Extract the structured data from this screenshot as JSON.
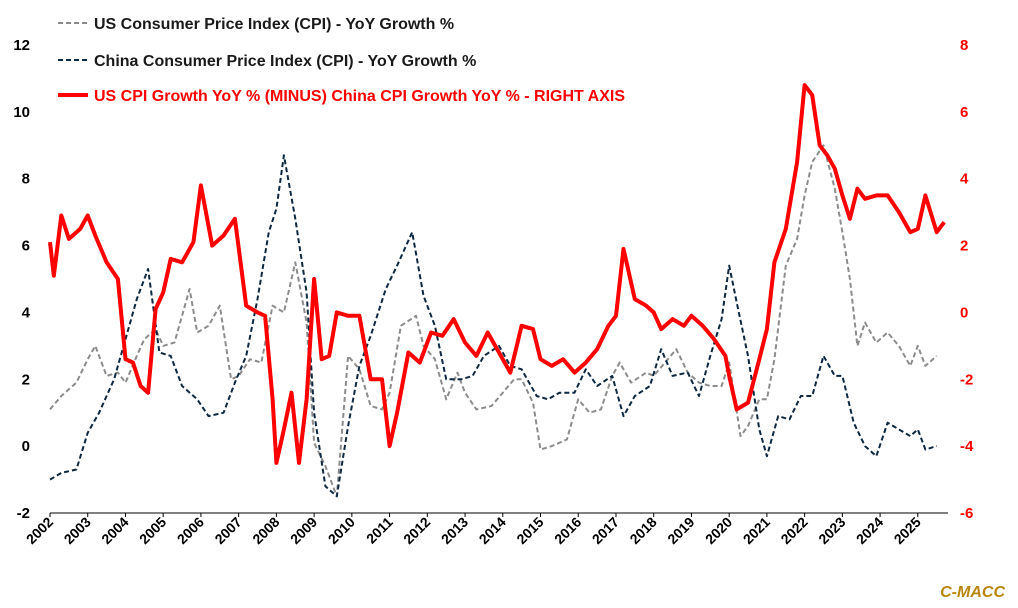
{
  "chart_data": {
    "type": "line",
    "title": "",
    "xlabel": "",
    "ylabel": "",
    "x_range": [
      2002,
      2025.8
    ],
    "x_ticks": [
      "2002",
      "2003",
      "2004",
      "2005",
      "2006",
      "2007",
      "2008",
      "2009",
      "2010",
      "2011",
      "2012",
      "2013",
      "2014",
      "2015",
      "2016",
      "2017",
      "2018",
      "2019",
      "2020",
      "2021",
      "2022",
      "2023",
      "2024",
      "2025"
    ],
    "ylim_left": [
      -2,
      12
    ],
    "yticks_left": [
      "-2",
      "0",
      "2",
      "4",
      "6",
      "8",
      "10",
      "12"
    ],
    "ylim_right": [
      -6,
      8
    ],
    "yticks_right": [
      "-6",
      "-4",
      "-2",
      "0",
      "2",
      "4",
      "6",
      "8"
    ],
    "grid": false,
    "legend_position": "top-left",
    "series": [
      {
        "name": "US Consumer Price Index (CPI) - YoY Growth %",
        "axis": "left",
        "color": "#8c8c8c",
        "style": "dashed",
        "x": [
          2002.0,
          2002.3,
          2002.7,
          2003.0,
          2003.2,
          2003.5,
          2003.8,
          2004.0,
          2004.3,
          2004.5,
          2004.8,
          2005.0,
          2005.3,
          2005.7,
          2005.9,
          2006.2,
          2006.5,
          2006.8,
          2007.0,
          2007.3,
          2007.6,
          2007.9,
          2008.2,
          2008.5,
          2008.8,
          2009.0,
          2009.3,
          2009.6,
          2009.9,
          2010.2,
          2010.5,
          2010.8,
          2011.0,
          2011.3,
          2011.7,
          2011.9,
          2012.2,
          2012.5,
          2012.8,
          2013.0,
          2013.3,
          2013.7,
          2014.0,
          2014.3,
          2014.5,
          2014.8,
          2015.0,
          2015.3,
          2015.7,
          2016.0,
          2016.3,
          2016.6,
          2016.9,
          2017.1,
          2017.4,
          2017.8,
          2018.0,
          2018.3,
          2018.6,
          2018.9,
          2019.2,
          2019.5,
          2019.8,
          2020.0,
          2020.3,
          2020.5,
          2020.8,
          2021.0,
          2021.2,
          2021.5,
          2021.8,
          2022.0,
          2022.2,
          2022.5,
          2022.8,
          2023.0,
          2023.2,
          2023.4,
          2023.6,
          2023.9,
          2024.2,
          2024.5,
          2024.8,
          2025.0,
          2025.2,
          2025.5
        ],
        "values": [
          1.1,
          1.5,
          1.9,
          2.6,
          3.0,
          2.1,
          2.2,
          1.9,
          2.7,
          3.2,
          3.5,
          3.0,
          3.1,
          4.7,
          3.4,
          3.6,
          4.2,
          2.0,
          2.1,
          2.6,
          2.5,
          4.2,
          4.0,
          5.5,
          3.7,
          0.1,
          -0.6,
          -1.5,
          2.7,
          2.3,
          1.2,
          1.1,
          1.6,
          3.6,
          3.9,
          3.0,
          2.6,
          1.4,
          2.2,
          1.6,
          1.1,
          1.2,
          1.6,
          2.0,
          2.0,
          1.3,
          -0.1,
          0.0,
          0.2,
          1.4,
          1.0,
          1.1,
          2.1,
          2.5,
          1.9,
          2.2,
          2.1,
          2.5,
          2.9,
          2.2,
          1.9,
          1.8,
          1.8,
          2.5,
          0.3,
          0.6,
          1.4,
          1.4,
          2.6,
          5.4,
          6.2,
          7.5,
          8.5,
          9.0,
          7.7,
          6.4,
          5.0,
          3.0,
          3.7,
          3.1,
          3.4,
          3.0,
          2.4,
          3.0,
          2.4,
          2.7
        ]
      },
      {
        "name": "China Consumer Price Index (CPI) - YoY Growth %",
        "axis": "left",
        "color": "#0d2841",
        "style": "dashed",
        "x": [
          2002.0,
          2002.3,
          2002.7,
          2003.0,
          2003.3,
          2003.7,
          2004.0,
          2004.3,
          2004.6,
          2004.9,
          2005.2,
          2005.5,
          2005.9,
          2006.2,
          2006.6,
          2006.9,
          2007.2,
          2007.5,
          2007.8,
          2008.0,
          2008.2,
          2008.5,
          2008.8,
          2009.0,
          2009.3,
          2009.6,
          2009.9,
          2010.2,
          2010.5,
          2010.9,
          2011.2,
          2011.6,
          2011.9,
          2012.2,
          2012.5,
          2012.9,
          2013.2,
          2013.5,
          2013.9,
          2014.2,
          2014.5,
          2014.9,
          2015.2,
          2015.5,
          2015.9,
          2016.2,
          2016.5,
          2016.9,
          2017.2,
          2017.5,
          2017.9,
          2018.2,
          2018.5,
          2018.9,
          2019.2,
          2019.5,
          2019.8,
          2020.0,
          2020.2,
          2020.5,
          2020.8,
          2021.0,
          2021.3,
          2021.6,
          2021.9,
          2022.2,
          2022.5,
          2022.8,
          2023.0,
          2023.3,
          2023.6,
          2023.9,
          2024.2,
          2024.5,
          2024.8,
          2025.0,
          2025.2,
          2025.5
        ],
        "values": [
          -1.0,
          -0.8,
          -0.7,
          0.4,
          1.0,
          2.0,
          3.2,
          4.4,
          5.3,
          2.8,
          2.7,
          1.8,
          1.4,
          0.9,
          1.0,
          1.9,
          2.7,
          4.4,
          6.4,
          7.1,
          8.7,
          6.8,
          4.6,
          1.0,
          -1.2,
          -1.5,
          0.6,
          2.4,
          3.3,
          4.7,
          5.4,
          6.4,
          4.5,
          3.6,
          2.0,
          2.0,
          2.1,
          2.7,
          3.0,
          2.4,
          2.3,
          1.5,
          1.4,
          1.6,
          1.6,
          2.3,
          1.8,
          2.1,
          0.9,
          1.5,
          1.8,
          2.9,
          2.1,
          2.2,
          1.5,
          2.7,
          3.8,
          5.4,
          4.3,
          2.7,
          0.5,
          -0.3,
          0.9,
          0.8,
          1.5,
          1.5,
          2.7,
          2.1,
          2.1,
          0.7,
          0.0,
          -0.3,
          0.7,
          0.5,
          0.3,
          0.5,
          -0.1,
          0.0
        ]
      },
      {
        "name": "US CPI Growth YoY % (MINUS) China CPI Growth YoY % - RIGHT AXIS",
        "axis": "right",
        "color": "#ff0000",
        "style": "solid",
        "x": [
          2002.0,
          2002.1,
          2002.3,
          2002.5,
          2002.8,
          2003.0,
          2003.2,
          2003.5,
          2003.8,
          2004.0,
          2004.2,
          2004.4,
          2004.6,
          2004.8,
          2005.0,
          2005.2,
          2005.5,
          2005.8,
          2006.0,
          2006.3,
          2006.6,
          2006.9,
          2007.2,
          2007.5,
          2007.7,
          2007.9,
          2008.0,
          2008.2,
          2008.4,
          2008.6,
          2008.8,
          2009.0,
          2009.2,
          2009.4,
          2009.6,
          2009.9,
          2010.2,
          2010.5,
          2010.8,
          2011.0,
          2011.2,
          2011.5,
          2011.8,
          2012.1,
          2012.4,
          2012.7,
          2013.0,
          2013.3,
          2013.6,
          2013.9,
          2014.2,
          2014.5,
          2014.8,
          2015.0,
          2015.3,
          2015.6,
          2015.9,
          2016.2,
          2016.5,
          2016.8,
          2017.0,
          2017.2,
          2017.5,
          2017.8,
          2018.0,
          2018.2,
          2018.5,
          2018.8,
          2019.0,
          2019.3,
          2019.6,
          2019.9,
          2020.0,
          2020.2,
          2020.5,
          2020.8,
          2021.0,
          2021.2,
          2021.5,
          2021.8,
          2022.0,
          2022.2,
          2022.4,
          2022.6,
          2022.8,
          2023.0,
          2023.2,
          2023.4,
          2023.6,
          2023.9,
          2024.2,
          2024.5,
          2024.8,
          2025.0,
          2025.2,
          2025.5,
          2025.7
        ],
        "values": [
          2.1,
          1.1,
          2.9,
          2.2,
          2.5,
          2.9,
          2.3,
          1.5,
          1.0,
          -1.4,
          -1.5,
          -2.2,
          -2.4,
          0.1,
          0.6,
          1.6,
          1.5,
          2.1,
          3.8,
          2.0,
          2.3,
          2.8,
          0.2,
          0.0,
          -0.1,
          -2.6,
          -4.5,
          -3.5,
          -2.4,
          -4.5,
          -2.6,
          1.0,
          -1.4,
          -1.3,
          0.0,
          -0.1,
          -0.1,
          -2.0,
          -2.0,
          -4.0,
          -3.0,
          -1.2,
          -1.5,
          -0.6,
          -0.7,
          -0.2,
          -0.9,
          -1.3,
          -0.6,
          -1.2,
          -1.8,
          -0.4,
          -0.5,
          -1.4,
          -1.6,
          -1.4,
          -1.8,
          -1.5,
          -1.1,
          -0.4,
          -0.1,
          1.9,
          0.4,
          0.2,
          0.0,
          -0.5,
          -0.2,
          -0.4,
          -0.1,
          -0.4,
          -0.8,
          -1.3,
          -1.9,
          -2.9,
          -2.7,
          -1.4,
          -0.5,
          1.5,
          2.5,
          4.5,
          6.8,
          6.5,
          5.0,
          4.7,
          4.3,
          3.5,
          2.8,
          3.7,
          3.4,
          3.5,
          3.5,
          3.0,
          2.4,
          2.5,
          3.5,
          2.4,
          2.7
        ]
      }
    ]
  },
  "watermark": "C-MACC"
}
